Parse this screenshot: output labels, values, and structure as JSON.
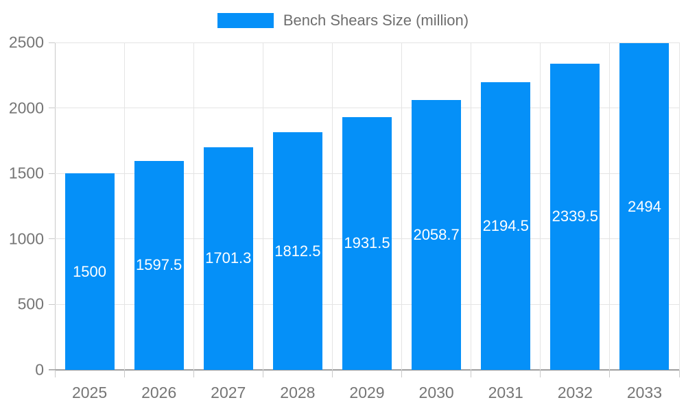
{
  "chart_data": {
    "type": "bar",
    "title": "Bench Shears Size (million)",
    "xlabel": "",
    "ylabel": "",
    "categories": [
      "2025",
      "2026",
      "2027",
      "2028",
      "2029",
      "2030",
      "2031",
      "2032",
      "2033"
    ],
    "series": [
      {
        "name": "Bench Shears Size (million)",
        "values": [
          1500,
          1597.5,
          1701.3,
          1812.5,
          1931.5,
          2058.7,
          2194.5,
          2339.5,
          2494
        ]
      }
    ],
    "data_labels": [
      "1500",
      "1597.5",
      "1701.3",
      "1812.5",
      "1931.5",
      "2058.7",
      "2194.5",
      "2339.5",
      "2494"
    ],
    "ylim": [
      0,
      2500
    ],
    "yticks": [
      0,
      500,
      1000,
      1500,
      2000,
      2500
    ],
    "grid": true,
    "legend_position": "top",
    "colors": {
      "bar": "#0590f8",
      "grid": "#e4e4e4",
      "axis": "#9e9e9e",
      "axis_light": "#c9c9c9",
      "tick_text": "#757575",
      "legend_text": "#6e6e6e",
      "bar_label": "#ffffff",
      "background": "#ffffff"
    }
  }
}
